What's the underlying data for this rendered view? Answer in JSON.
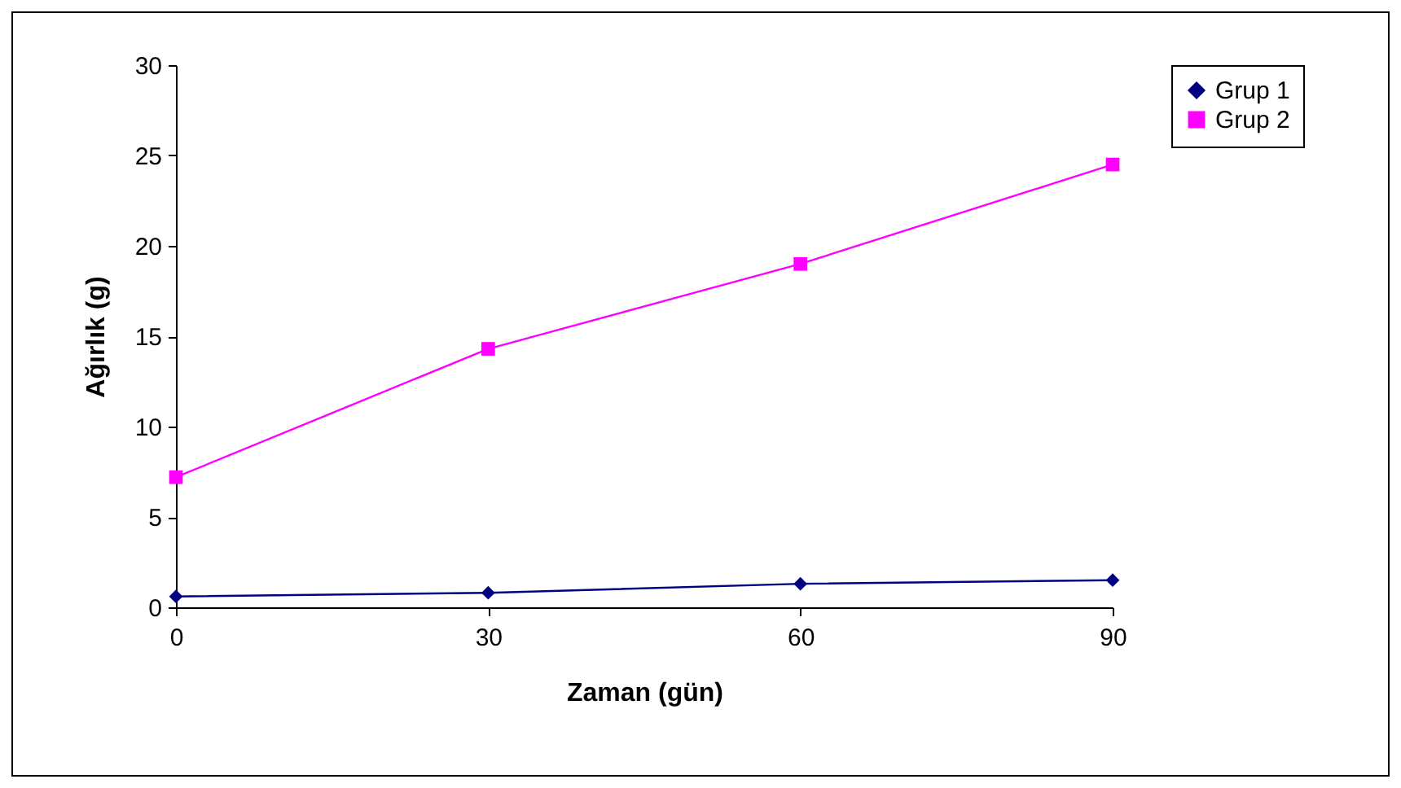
{
  "chart_data": {
    "type": "line",
    "xlabel": "Zaman (gün)",
    "ylabel": "Ağırlık (g)",
    "x": [
      0,
      30,
      60,
      90
    ],
    "xlim": [
      0,
      90
    ],
    "xticks": [
      0,
      30,
      60,
      90
    ],
    "ylim": [
      0,
      30
    ],
    "yticks": [
      0,
      5,
      10,
      15,
      20,
      25,
      30
    ],
    "grid": false,
    "legend": "right",
    "series": [
      {
        "name": "Grup 1",
        "color": "#000080",
        "marker": "diamond",
        "values": [
          0.6,
          0.8,
          1.3,
          1.5
        ]
      },
      {
        "name": "Grup 2",
        "color": "#ff00ff",
        "marker": "square",
        "values": [
          7.2,
          14.3,
          19.0,
          24.5
        ]
      }
    ]
  }
}
